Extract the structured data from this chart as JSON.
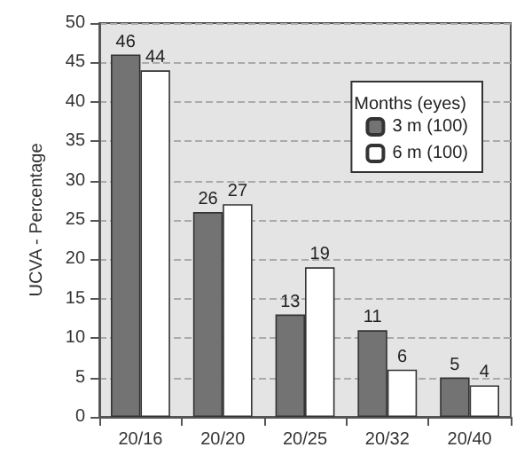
{
  "chart_data": {
    "type": "bar",
    "ylabel": "UCVA - Percentage",
    "legend_title": "Months (eyes)",
    "categories": [
      "20/16",
      "20/20",
      "20/25",
      "20/32",
      "20/40"
    ],
    "series": [
      {
        "name": "3 m (100)",
        "color": "#737373",
        "values": [
          46,
          26,
          13,
          11,
          5
        ]
      },
      {
        "name": "6 m (100)",
        "color": "#ffffff",
        "values": [
          44,
          27,
          19,
          6,
          4
        ]
      }
    ],
    "ylim": [
      0,
      50
    ],
    "yticks": [
      0,
      5,
      10,
      15,
      20,
      25,
      30,
      35,
      40,
      45,
      50
    ],
    "grid": "y",
    "legend": "top right",
    "data_labels": true
  }
}
